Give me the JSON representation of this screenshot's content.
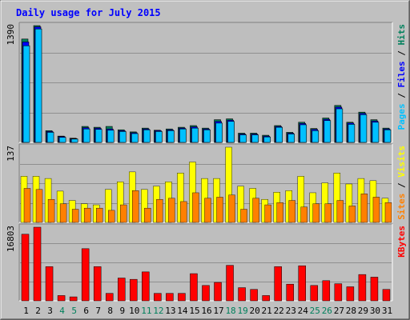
{
  "title": "Daily usage for July 2015",
  "colors": {
    "frame_outer": "#7f7f7f",
    "background": "#c0c0c0",
    "plot_bg": "#bebebe",
    "title": "#0000ff",
    "hits": "#00805c",
    "files": "#0000ff",
    "pages": "#00c0ff",
    "visits": "#ffff00",
    "sites": "#ff8000",
    "kbytes": "#ff0000",
    "weekend": "#00805c",
    "weekday": "#000000"
  },
  "chart_data": [
    {
      "type": "bar",
      "name": "hits-files-pages",
      "y_max_label": "1390",
      "ylim": [
        0,
        1390
      ],
      "right_label": [
        {
          "text": "Pages",
          "color": "#00c0ff"
        },
        {
          "text": " / ",
          "color": "#000000"
        },
        {
          "text": "Files",
          "color": "#0000ff"
        },
        {
          "text": " / ",
          "color": "#000000"
        },
        {
          "text": "Hits",
          "color": "#00805c"
        }
      ],
      "categories": [
        "1",
        "2",
        "3",
        "4",
        "5",
        "6",
        "7",
        "8",
        "9",
        "10",
        "11",
        "12",
        "13",
        "14",
        "15",
        "16",
        "17",
        "18",
        "19",
        "20",
        "21",
        "22",
        "23",
        "24",
        "25",
        "26",
        "27",
        "28",
        "29",
        "30",
        "31"
      ],
      "series": [
        {
          "name": "Hits",
          "values": [
            1230,
            1390,
            140,
            75,
            50,
            190,
            180,
            190,
            150,
            125,
            170,
            145,
            160,
            180,
            200,
            170,
            270,
            280,
            110,
            110,
            85,
            200,
            120,
            240,
            165,
            290,
            440,
            240,
            360,
            270,
            170
          ]
        },
        {
          "name": "Files",
          "values": [
            1195,
            1375,
            130,
            70,
            45,
            175,
            170,
            160,
            140,
            115,
            160,
            140,
            150,
            170,
            185,
            160,
            250,
            265,
            100,
            100,
            75,
            190,
            110,
            225,
            155,
            275,
            420,
            230,
            345,
            255,
            160
          ]
        },
        {
          "name": "Pages",
          "values": [
            1150,
            1350,
            120,
            60,
            40,
            160,
            155,
            145,
            130,
            105,
            150,
            130,
            140,
            160,
            170,
            150,
            230,
            250,
            90,
            90,
            65,
            180,
            100,
            210,
            140,
            260,
            400,
            215,
            330,
            240,
            150
          ]
        }
      ]
    },
    {
      "type": "bar",
      "name": "visits-sites",
      "y_max_label": "137",
      "ylim": [
        0,
        137
      ],
      "right_label": [
        {
          "text": "Sites",
          "color": "#ff8000"
        },
        {
          "text": " / ",
          "color": "#000000"
        },
        {
          "text": "Visits",
          "color": "#ffff00"
        }
      ],
      "categories": [
        "1",
        "2",
        "3",
        "4",
        "5",
        "6",
        "7",
        "8",
        "9",
        "10",
        "11",
        "12",
        "13",
        "14",
        "15",
        "16",
        "17",
        "18",
        "19",
        "20",
        "21",
        "22",
        "23",
        "24",
        "25",
        "26",
        "27",
        "28",
        "29",
        "30",
        "31"
      ],
      "series": [
        {
          "name": "Visits",
          "values": [
            84,
            84,
            80,
            57,
            40,
            34,
            32,
            60,
            74,
            92,
            60,
            66,
            74,
            90,
            110,
            80,
            80,
            137,
            66,
            62,
            42,
            55,
            58,
            84,
            54,
            72,
            90,
            70,
            80,
            76,
            44
          ]
        },
        {
          "name": "Sites",
          "values": [
            62,
            60,
            42,
            34,
            24,
            26,
            26,
            22,
            32,
            58,
            26,
            42,
            44,
            38,
            54,
            44,
            46,
            50,
            24,
            44,
            32,
            36,
            40,
            28,
            34,
            34,
            40,
            30,
            52,
            46,
            36
          ]
        }
      ]
    },
    {
      "type": "bar",
      "name": "kbytes",
      "y_max_label": "16803",
      "ylim": [
        0,
        16803
      ],
      "right_label": [
        {
          "text": "KBytes",
          "color": "#ff0000"
        }
      ],
      "categories": [
        "1",
        "2",
        "3",
        "4",
        "5",
        "6",
        "7",
        "8",
        "9",
        "10",
        "11",
        "12",
        "13",
        "14",
        "15",
        "16",
        "17",
        "18",
        "19",
        "20",
        "21",
        "22",
        "23",
        "24",
        "25",
        "26",
        "27",
        "28",
        "29",
        "30",
        "31"
      ],
      "series": [
        {
          "name": "KBytes",
          "values": [
            15200,
            16803,
            7800,
            1200,
            900,
            11900,
            7800,
            1700,
            5200,
            4900,
            6600,
            1700,
            1700,
            1700,
            6200,
            3500,
            4200,
            8100,
            3000,
            2600,
            1200,
            7800,
            3800,
            8000,
            3500,
            4600,
            3900,
            3200,
            6000,
            5400,
            2600
          ]
        }
      ]
    }
  ],
  "x_labels": [
    {
      "text": "1",
      "weekend": false
    },
    {
      "text": "2",
      "weekend": false
    },
    {
      "text": "3",
      "weekend": false
    },
    {
      "text": "4",
      "weekend": true
    },
    {
      "text": "5",
      "weekend": true
    },
    {
      "text": "6",
      "weekend": false
    },
    {
      "text": "7",
      "weekend": false
    },
    {
      "text": "8",
      "weekend": false
    },
    {
      "text": "9",
      "weekend": false
    },
    {
      "text": "10",
      "weekend": false
    },
    {
      "text": "11",
      "weekend": true
    },
    {
      "text": "12",
      "weekend": true
    },
    {
      "text": "13",
      "weekend": false
    },
    {
      "text": "14",
      "weekend": false
    },
    {
      "text": "15",
      "weekend": false
    },
    {
      "text": "16",
      "weekend": false
    },
    {
      "text": "17",
      "weekend": false
    },
    {
      "text": "18",
      "weekend": true
    },
    {
      "text": "19",
      "weekend": true
    },
    {
      "text": "20",
      "weekend": false
    },
    {
      "text": "21",
      "weekend": false
    },
    {
      "text": "22",
      "weekend": false
    },
    {
      "text": "23",
      "weekend": false
    },
    {
      "text": "24",
      "weekend": false
    },
    {
      "text": "25",
      "weekend": true
    },
    {
      "text": "26",
      "weekend": true
    },
    {
      "text": "27",
      "weekend": false
    },
    {
      "text": "28",
      "weekend": false
    },
    {
      "text": "29",
      "weekend": false
    },
    {
      "text": "30",
      "weekend": false
    },
    {
      "text": "31",
      "weekend": false
    }
  ]
}
